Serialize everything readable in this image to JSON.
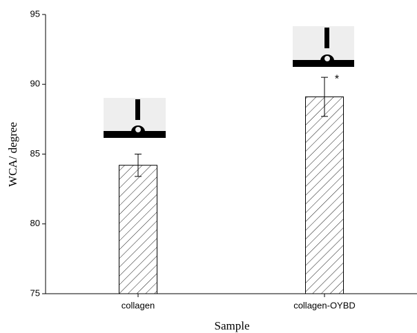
{
  "chart_data": {
    "type": "bar",
    "x_label": "Sample",
    "y_label": "WCA/ degree",
    "categories": [
      "collagen",
      "collagen-OYBD"
    ],
    "values": [
      84.2,
      89.1
    ],
    "errors": [
      0.8,
      1.4
    ],
    "annotations": [
      "*"
    ],
    "color": "#000000",
    "ylim": [
      75,
      95
    ],
    "yticks": [
      75,
      80,
      85,
      90,
      95
    ],
    "grid": false
  }
}
